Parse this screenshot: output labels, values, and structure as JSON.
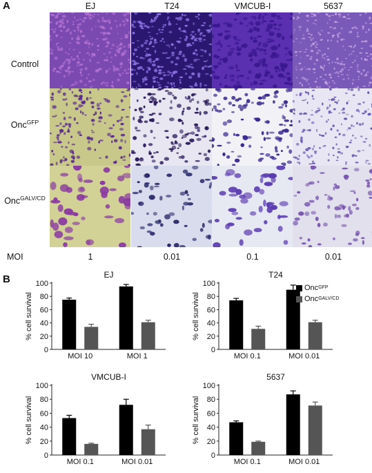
{
  "panel_a": {
    "label": "A",
    "columns": [
      "EJ",
      "T24",
      "VMCUB-I",
      "5637"
    ],
    "rows": [
      {
        "label": "Control",
        "sup": ""
      },
      {
        "label": "Onc",
        "sup": "GFP"
      },
      {
        "label": "Onc",
        "sup": "GALV/CD"
      }
    ],
    "moi_label": "MOI",
    "moi_values": [
      "1",
      "0.01",
      "0.1",
      "0.01"
    ]
  },
  "panel_b": {
    "label": "B"
  },
  "colors": {
    "gfp_bar": "#000000",
    "galv_bar": "#555555",
    "control_stain": "#5a2a9a",
    "gfp_bg": "#d8d6a0",
    "galv_bg": "#e8e6c8"
  },
  "legend": {
    "items": [
      {
        "base": "Onc",
        "sup": "GFP",
        "color": "#000000"
      },
      {
        "base": "Onc",
        "sup": "GALV/CD",
        "color": "#555555"
      }
    ]
  },
  "chart_data": [
    {
      "type": "bar",
      "title": "EJ",
      "ylabel": "% cell survival",
      "ylim": [
        0,
        100
      ],
      "yticks": [
        0,
        20,
        40,
        60,
        80,
        100
      ],
      "categories": [
        "MOI 10",
        "MOI 1"
      ],
      "series": [
        {
          "name": "OncGFP",
          "values": [
            75,
            95
          ],
          "errors": [
            2.5,
            3
          ]
        },
        {
          "name": "OncGALV/CD",
          "values": [
            34,
            41
          ],
          "errors": [
            4,
            3
          ]
        }
      ]
    },
    {
      "type": "bar",
      "title": "T24",
      "ylabel": "% cell survival",
      "ylim": [
        0,
        100
      ],
      "yticks": [
        0,
        20,
        40,
        60,
        80,
        100
      ],
      "categories": [
        "MOI 0.1",
        "MOI 0.01"
      ],
      "series": [
        {
          "name": "OncGFP",
          "values": [
            74,
            90
          ],
          "errors": [
            3,
            7
          ]
        },
        {
          "name": "OncGALV/CD",
          "values": [
            31,
            41
          ],
          "errors": [
            4,
            3
          ]
        }
      ]
    },
    {
      "type": "bar",
      "title": "VMCUB-I",
      "ylabel": "% cell survival",
      "ylim": [
        0,
        100
      ],
      "yticks": [
        0,
        20,
        40,
        60,
        80,
        100
      ],
      "categories": [
        "MOI 0.1",
        "MOI 0.01"
      ],
      "series": [
        {
          "name": "OncGFP",
          "values": [
            53,
            72
          ],
          "errors": [
            4,
            8
          ]
        },
        {
          "name": "OncGALV/CD",
          "values": [
            16,
            37
          ],
          "errors": [
            1,
            6
          ]
        }
      ]
    },
    {
      "type": "bar",
      "title": "5637",
      "ylabel": "% cell survival",
      "ylim": [
        0,
        100
      ],
      "yticks": [
        0,
        20,
        40,
        60,
        80,
        100
      ],
      "categories": [
        "MOI 0.1",
        "MOI 0.01"
      ],
      "series": [
        {
          "name": "OncGFP",
          "values": [
            47,
            87
          ],
          "errors": [
            2,
            5
          ]
        },
        {
          "name": "OncGALV/CD",
          "values": [
            19,
            71
          ],
          "errors": [
            1,
            5
          ]
        }
      ]
    }
  ]
}
